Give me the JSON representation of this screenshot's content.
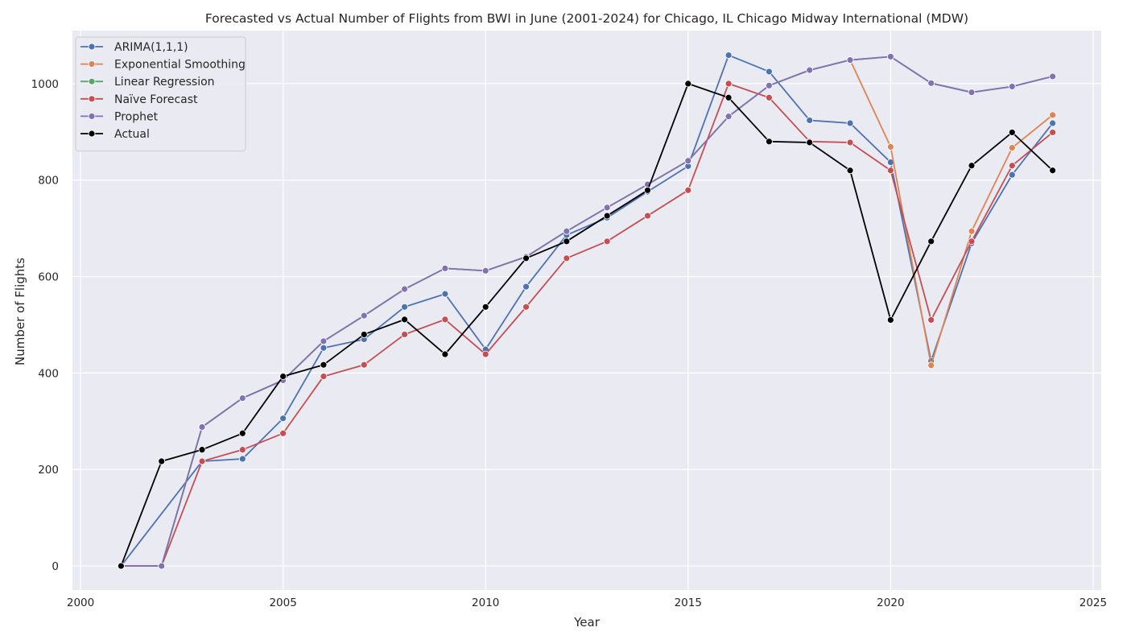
{
  "chart_data": {
    "type": "line",
    "title": "Forecasted vs Actual Number of Flights from BWI in June (2001-2024) for Chicago, IL Chicago Midway International (MDW)",
    "xlabel": "Year",
    "ylabel": "Number of Flights",
    "xlim": [
      1999.8,
      2025.2
    ],
    "ylim": [
      -50,
      1110
    ],
    "x_ticks": [
      2000,
      2005,
      2010,
      2015,
      2020,
      2025
    ],
    "y_ticks": [
      0,
      200,
      400,
      600,
      800,
      1000
    ],
    "grid": true,
    "legend_position": "top-left",
    "background": "#eaeaf2",
    "x": [
      2001,
      2002,
      2003,
      2004,
      2005,
      2006,
      2007,
      2008,
      2009,
      2010,
      2011,
      2012,
      2013,
      2014,
      2015,
      2016,
      2017,
      2018,
      2019,
      2020,
      2021,
      2022,
      2023,
      2024
    ],
    "series": [
      {
        "name": "ARIMA(1,1,1)",
        "color": "#4c72b0",
        "values": [
          0,
          null,
          217,
          222,
          306,
          452,
          470,
          537,
          564,
          449,
          579,
          686,
          722,
          776,
          829,
          1059,
          1025,
          924,
          918,
          837,
          425,
          669,
          811,
          918
        ]
      },
      {
        "name": "Exponential Smoothing",
        "color": "#dd8452",
        "values": [
          0,
          0,
          288,
          348,
          385,
          466,
          519,
          574,
          617,
          612,
          641,
          694,
          743,
          791,
          840,
          932,
          996,
          1028,
          1049,
          869,
          416,
          694,
          867,
          935
        ]
      },
      {
        "name": "Linear Regression",
        "color": "#55a868",
        "values": [
          0,
          0,
          288,
          348,
          385,
          466,
          519,
          574,
          617,
          612,
          641,
          694,
          743,
          791,
          840,
          932,
          996,
          1028,
          1049,
          1056,
          1001,
          982,
          994,
          1015
        ]
      },
      {
        "name": "Naïve Forecast",
        "color": "#c44e52",
        "values": [
          0,
          0,
          217,
          241,
          275,
          393,
          417,
          480,
          511,
          439,
          537,
          638,
          673,
          726,
          779,
          1000,
          971,
          880,
          878,
          820,
          510,
          673,
          830,
          899
        ]
      },
      {
        "name": "Prophet",
        "color": "#8172b3",
        "values": [
          0,
          0,
          288,
          348,
          385,
          466,
          519,
          574,
          617,
          612,
          641,
          694,
          743,
          791,
          840,
          932,
          996,
          1028,
          1049,
          1056,
          1001,
          982,
          994,
          1015
        ]
      },
      {
        "name": "Actual",
        "color": "#000000",
        "values": [
          0,
          217,
          241,
          275,
          393,
          417,
          480,
          511,
          439,
          537,
          638,
          673,
          726,
          779,
          1000,
          971,
          880,
          878,
          820,
          510,
          673,
          830,
          899,
          820
        ]
      }
    ]
  }
}
